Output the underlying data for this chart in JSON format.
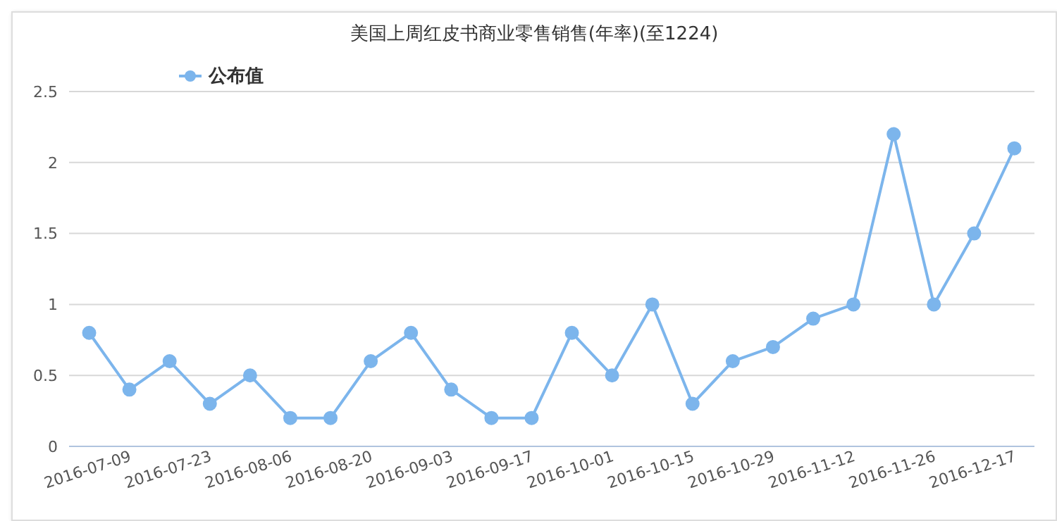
{
  "chart_data": {
    "type": "line",
    "title": "美国上周红皮书商业零售销售(年率)(至1224)",
    "categories": [
      "2016-07-09",
      null,
      "2016-07-23",
      null,
      "2016-08-06",
      null,
      "2016-08-20",
      null,
      "2016-09-03",
      null,
      "2016-09-17",
      null,
      "2016-10-01",
      null,
      "2016-10-15",
      null,
      "2016-10-29",
      null,
      "2016-11-12",
      null,
      "2016-11-26",
      null,
      "2016-12-17",
      null
    ],
    "series": [
      {
        "name": "公布值",
        "color": "#7cb5ec",
        "values": [
          0.8,
          0.4,
          0.6,
          0.3,
          0.5,
          0.2,
          0.2,
          0.6,
          0.8,
          0.4,
          0.2,
          0.2,
          0.8,
          0.5,
          1.0,
          0.3,
          0.6,
          0.7,
          0.9,
          1.0,
          2.2,
          1.0,
          1.5,
          2.1
        ]
      }
    ],
    "ylim": [
      0,
      2.5
    ],
    "yticks": [
      0,
      0.5,
      1,
      1.5,
      2,
      2.5
    ],
    "grid": "y",
    "legend": "top left",
    "marker": "circle",
    "line_style": "solid"
  }
}
